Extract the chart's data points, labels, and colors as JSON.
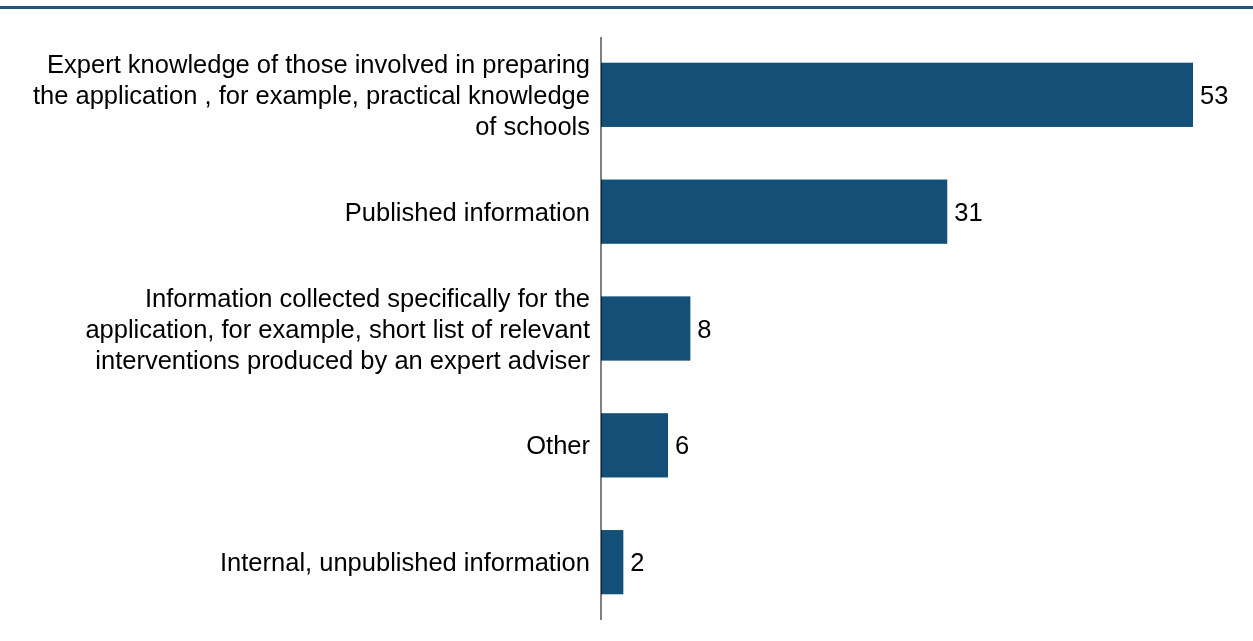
{
  "chart_data": {
    "type": "bar",
    "orientation": "horizontal",
    "categories": [
      "Expert knowledge of those involved in preparing the application , for example, practical knowledge of schools",
      "Published information",
      "Information collected specifically for the application, for example, short list of relevant interventions produced by an expert adviser",
      "Other",
      "Internal, unpublished information"
    ],
    "values": [
      53,
      31,
      8,
      6,
      2
    ],
    "color": "#134f76",
    "data_labels": true
  }
}
